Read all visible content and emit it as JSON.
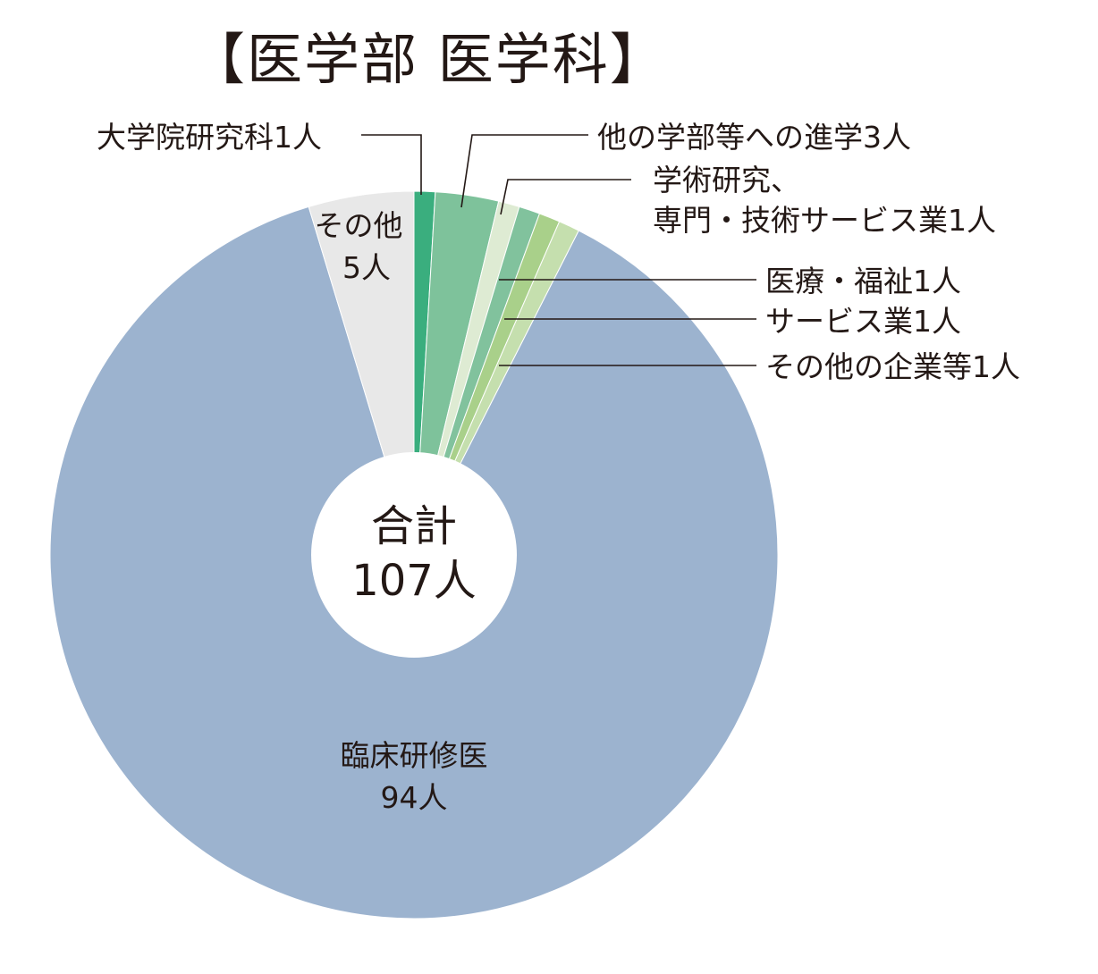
{
  "chart_data": {
    "type": "pie",
    "title": "【医学部 医学科】",
    "center": {
      "line1": "合計",
      "line2": "107人",
      "total": 107
    },
    "slices": [
      {
        "label": "大学院研究科1人",
        "value": 1,
        "color": "#3aae7e"
      },
      {
        "label": "他の学部等への進学3人",
        "value": 3,
        "color": "#7ec29b"
      },
      {
        "label": "学術研究、専門・技術サービス業1人",
        "label_lines": [
          "学術研究、",
          "専門・技術サービス業1人"
        ],
        "value": 1,
        "color": "#deebd3"
      },
      {
        "label": "医療・福祉1人",
        "value": 1,
        "color": "#81c29d"
      },
      {
        "label": "サービス業1人",
        "value": 1,
        "color": "#a9d08a"
      },
      {
        "label": "その他の企業等1人",
        "value": 1,
        "color": "#c5dfae"
      },
      {
        "label": "臨床研修医94人",
        "label_lines": [
          "臨床研修医",
          "94人"
        ],
        "value": 94,
        "color": "#9cb3cf"
      },
      {
        "label": "その他5人",
        "label_lines": [
          "その他",
          "5人"
        ],
        "value": 5,
        "color": "#e8e8e8"
      }
    ],
    "legend": "none"
  }
}
